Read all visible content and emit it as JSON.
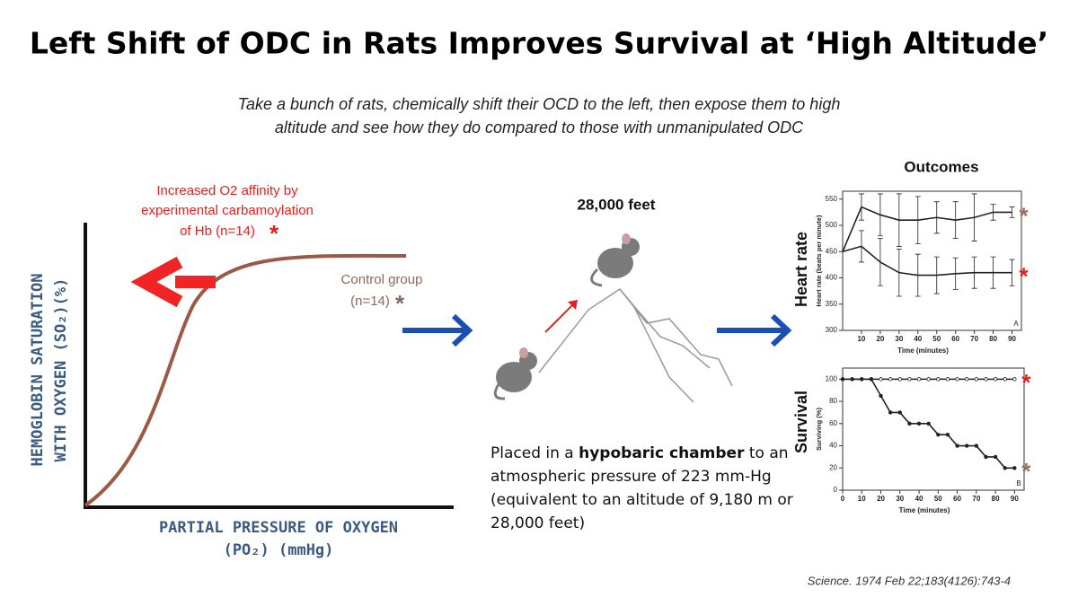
{
  "header": {
    "title": "Left Shift of ODC in Rats Improves Survival at ‘High Altitude’",
    "subtitle": [
      "Take a bunch of rats, chemically shift their OCD to the left, then expose them to high",
      "altitude and see how they do compared to those with unmanipulated ODC"
    ]
  },
  "odc": {
    "treated_label": [
      "Increased O2 affinity by",
      "experimental carbamoylation",
      "of Hb (n=14)"
    ],
    "treated_marker": "*",
    "control_label": [
      "Control group",
      "(n=14)"
    ],
    "control_marker": "*",
    "y_axis_label": [
      "HEMOGLOBIN SATURATION",
      "WITH OXYGEN (SO₂)(%)"
    ],
    "x_axis_label": [
      "PARTIAL PRESSURE OF OXYGEN",
      "(PO₂) (mmHg)"
    ]
  },
  "altitude": {
    "label": "28,000 feet",
    "description": {
      "before": "Placed in a ",
      "bold": "hypobaric chamber",
      "after": " to an atmospheric pressure of 223 mm-Hg  (equivalent to an altitude of 9,180 m or  28,000 feet)"
    }
  },
  "outcomes_title": "Outcomes",
  "citation": "Science. 1974 Feb 22;183(4126):743-4",
  "chart_data": [
    {
      "type": "line",
      "side_label": "Heart rate",
      "y_label": "Heart rate (beats per minute)",
      "x_label": "Time (minutes)",
      "panel": "A",
      "x": [
        0,
        10,
        20,
        30,
        40,
        50,
        60,
        70,
        80,
        90
      ],
      "xlim": [
        0,
        95
      ],
      "ylim": [
        300,
        565
      ],
      "xticks": [
        10,
        20,
        30,
        40,
        50,
        60,
        70,
        80,
        90
      ],
      "yticks": [
        300,
        350,
        400,
        450,
        500,
        550
      ],
      "series": [
        {
          "color": "#222222",
          "values": [
            450,
            535,
            520,
            510,
            510,
            515,
            510,
            515,
            525,
            525
          ],
          "errors": [
            null,
            25,
            40,
            50,
            45,
            30,
            35,
            45,
            15,
            10
          ],
          "marker": "*",
          "marker_color": "#9b6e5e"
        },
        {
          "color": "#222222",
          "values": [
            450,
            460,
            430,
            410,
            405,
            405,
            408,
            410,
            410,
            410
          ],
          "errors": [
            null,
            30,
            45,
            45,
            40,
            35,
            30,
            30,
            30,
            25
          ],
          "marker": "*",
          "marker_color": "#e8201c"
        }
      ]
    },
    {
      "type": "line",
      "side_label": "Survival",
      "y_label": "Surviving (%)",
      "x_label": "Time (minutes)",
      "panel": "B",
      "x": [
        0,
        5,
        10,
        15,
        20,
        25,
        30,
        35,
        40,
        45,
        50,
        55,
        60,
        65,
        70,
        75,
        80,
        85,
        90
      ],
      "xlim": [
        0,
        95
      ],
      "ylim": [
        0,
        110
      ],
      "xticks": [
        0,
        10,
        20,
        30,
        40,
        50,
        60,
        70,
        80,
        90
      ],
      "yticks": [
        0,
        20,
        40,
        60,
        80,
        100
      ],
      "series": [
        {
          "color": "#222222",
          "values": [
            100,
            100,
            100,
            100,
            100,
            100,
            100,
            100,
            100,
            100,
            100,
            100,
            100,
            100,
            100,
            100,
            100,
            100,
            100
          ],
          "marker": "*",
          "marker_color": "#e8201c"
        },
        {
          "color": "#222222",
          "values": [
            100,
            100,
            100,
            100,
            85,
            70,
            70,
            60,
            60,
            60,
            50,
            50,
            40,
            40,
            40,
            30,
            30,
            20,
            20
          ],
          "marker": "*",
          "marker_color": "#9b6e5e"
        }
      ]
    }
  ]
}
